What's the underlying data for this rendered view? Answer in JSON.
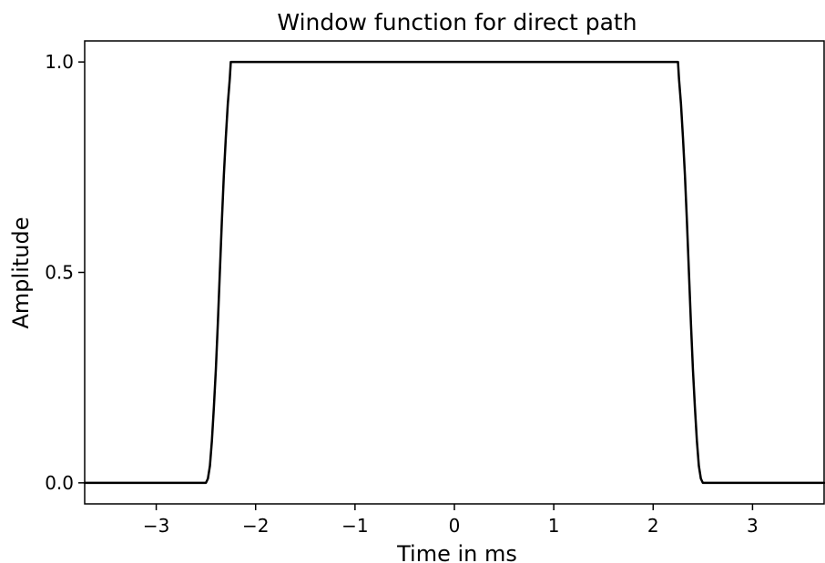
{
  "chart_data": {
    "type": "line",
    "title": "Window function for direct path",
    "xlabel": "Time in ms",
    "ylabel": "Amplitude",
    "xlim": [
      -3.72,
      3.72
    ],
    "ylim": [
      -0.05,
      1.05
    ],
    "xticks": [
      -3,
      -2,
      -1,
      0,
      1,
      2,
      3
    ],
    "xtick_labels": [
      "−3",
      "−2",
      "−1",
      "0",
      "1",
      "2",
      "3"
    ],
    "yticks": [
      0.0,
      0.5,
      1.0
    ],
    "ytick_labels": [
      "0.0",
      "0.5",
      "1.0"
    ],
    "grid": false,
    "legend": "none",
    "line_color": "#000000",
    "series": [
      {
        "x": [
          -3.72,
          -2.5,
          -2.48,
          -2.46,
          -2.44,
          -2.42,
          -2.4,
          -2.38,
          -2.36,
          -2.34,
          -2.32,
          -2.3,
          -2.28,
          -2.26,
          -2.25,
          2.25,
          2.26,
          2.28,
          2.3,
          2.32,
          2.34,
          2.36,
          2.38,
          2.4,
          2.42,
          2.44,
          2.46,
          2.48,
          2.5,
          3.72
        ],
        "y": [
          0.0,
          0.0,
          0.01,
          0.04,
          0.1,
          0.18,
          0.27,
          0.38,
          0.5,
          0.62,
          0.73,
          0.82,
          0.9,
          0.96,
          1.0,
          1.0,
          0.96,
          0.9,
          0.82,
          0.73,
          0.62,
          0.5,
          0.38,
          0.27,
          0.18,
          0.1,
          0.04,
          0.01,
          0.0,
          0.0
        ]
      }
    ]
  }
}
